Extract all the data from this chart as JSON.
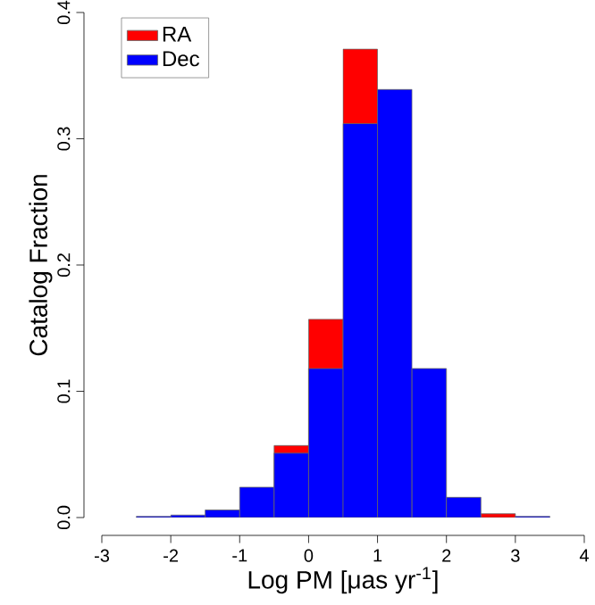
{
  "chart_data": {
    "type": "histogram",
    "xlabel": "Log PM  [μas yr$^{-1}$]",
    "ylabel": "Catalog Fraction",
    "bins": [
      -2.5,
      -2,
      -1.5,
      -1,
      -0.5,
      0,
      0.5,
      1,
      1.5,
      2,
      2.5,
      3,
      3.5
    ],
    "series": [
      {
        "name": "RA",
        "color": "#ff0000",
        "values": [
          null,
          null,
          null,
          null,
          0.057,
          0.157,
          0.371,
          null,
          null,
          null,
          0.003,
          null
        ]
      },
      {
        "name": "Dec",
        "color": "#0000ff",
        "values": [
          0.001,
          0.002,
          0.006,
          0.024,
          0.051,
          0.118,
          0.312,
          0.339,
          0.118,
          0.016,
          null,
          0.001
        ]
      }
    ],
    "xlim": [
      -3,
      4
    ],
    "ylim": [
      0,
      0.4
    ],
    "xticks": [
      -3,
      -2,
      -1,
      0,
      1,
      2,
      3,
      4
    ],
    "yticks": [
      {
        "value": 0,
        "label": "0.0"
      },
      0.1,
      0.2,
      0.3,
      0.4
    ],
    "legend": "top left",
    "grid": false
  }
}
